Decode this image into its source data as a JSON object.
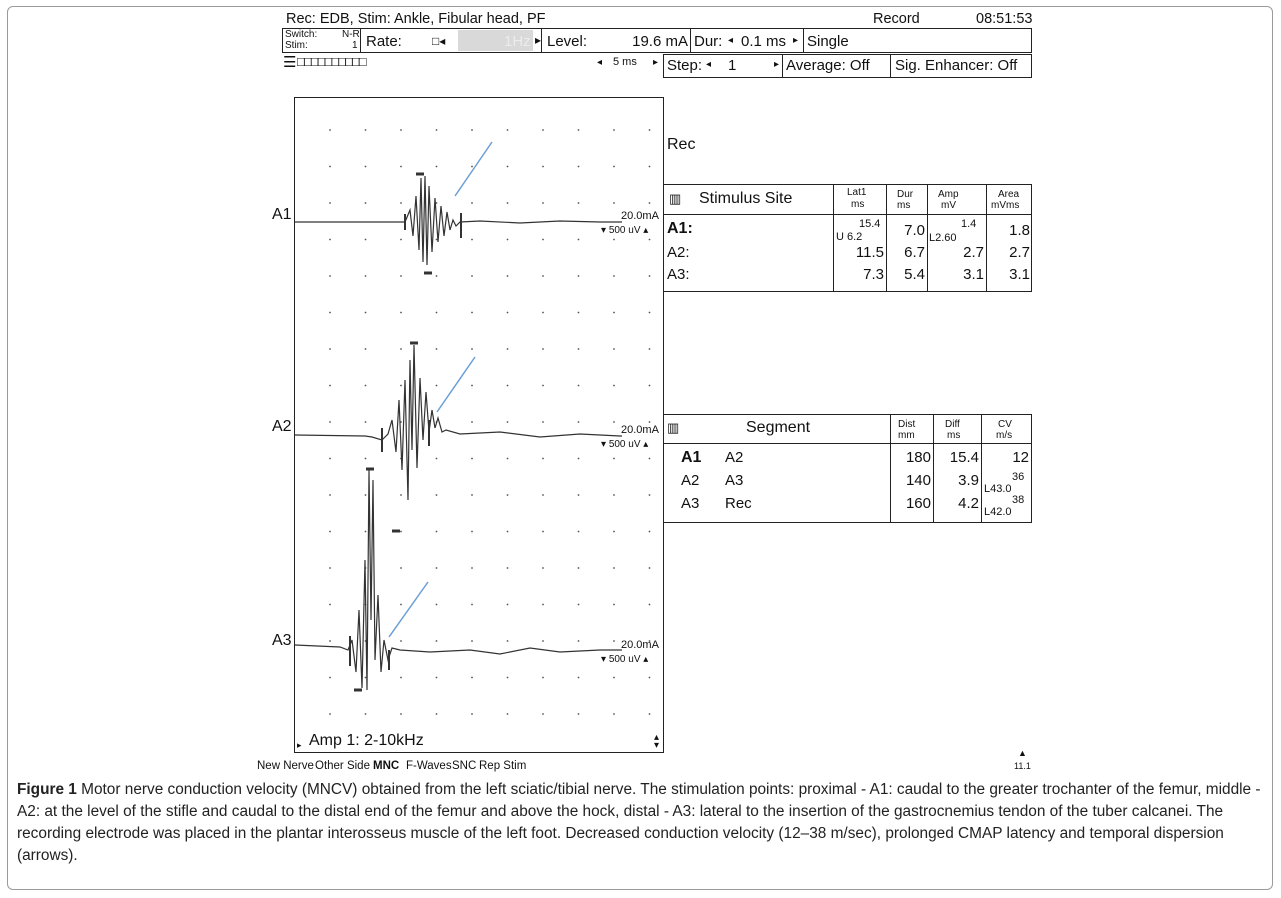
{
  "header": {
    "rec_line": "Rec: EDB,  Stim: Ankle, Fibular head, PF",
    "mode": "Record",
    "time": "08:51:53"
  },
  "controls": {
    "switch_label": "Switch:",
    "switch_value": "N-R",
    "stim_label": "Stim:",
    "stim_value": "1",
    "rate_label": "Rate:",
    "rate_value": "1Hz",
    "level_label": "Level:",
    "level_value": "19.6 mA",
    "dur_label": "Dur:",
    "dur_value": "0.1 ms",
    "single": "Single",
    "timebase": "5 ms",
    "step_label": "Step:",
    "step_value": "1",
    "average": "Average: Off",
    "sig_enhancer": "Sig. Enhancer: Off"
  },
  "traces": [
    {
      "label": "A1",
      "stim": "20.0mA",
      "gain": "500 uV"
    },
    {
      "label": "A2",
      "stim": "20.0mA",
      "gain": "500 uV"
    },
    {
      "label": "A3",
      "stim": "20.0mA",
      "gain": "500 uV"
    }
  ],
  "amp_label": "Amp 1: 2-10kHz",
  "rec_heading": "Rec",
  "stimulus_table": {
    "header": "Stimulus Site",
    "cols": [
      {
        "top": "Lat1",
        "bottom": "ms"
      },
      {
        "top": "Dur",
        "bottom": "ms"
      },
      {
        "top": "Amp",
        "bottom": "mV"
      },
      {
        "top": "Area",
        "bottom": "mVms"
      }
    ],
    "rows": [
      {
        "site": "A1:",
        "lat_sup": "15.4",
        "lat_mark": "U 6.2",
        "dur": "7.0",
        "amp_sup": "1.4",
        "amp_mark": "L2.60",
        "area": "1.8"
      },
      {
        "site": "A2:",
        "lat": "11.5",
        "dur": "6.7",
        "amp": "2.7",
        "area": "2.7"
      },
      {
        "site": "A3:",
        "lat": "7.3",
        "dur": "5.4",
        "amp": "3.1",
        "area": "3.1"
      }
    ]
  },
  "segment_table": {
    "header": "Segment",
    "cols": [
      {
        "top": "Dist",
        "bottom": "mm"
      },
      {
        "top": "Diff",
        "bottom": "ms"
      },
      {
        "top": "CV",
        "bottom": "m/s"
      }
    ],
    "rows": [
      {
        "from": "A1",
        "to": "A2",
        "dist": "180",
        "diff": "15.4",
        "cv": "12"
      },
      {
        "from": "A2",
        "to": "A3",
        "dist": "140",
        "diff": "3.9",
        "cv_sup": "36",
        "cv_mark": "L43.0"
      },
      {
        "from": "A3",
        "to": "Rec",
        "dist": "160",
        "diff": "4.2",
        "cv_sup": "38",
        "cv_mark": "L42.0"
      }
    ]
  },
  "bottom_menu": [
    "New Nerve",
    "Other Side",
    "MNC",
    "F-Waves",
    "SNC",
    "Rep Stim"
  ],
  "corner_value": "11.1",
  "caption": {
    "label": "Figure 1",
    "text": "Motor nerve conduction velocity (MNCV) obtained from the left sciatic/tibial nerve. The stimulation points: proximal - A1: caudal to the greater trochanter of the femur, middle - A2: at the level of the stifle and caudal to the distal end of the femur and above the hock, distal - A3: lateral to the insertion of the gastrocnemius tendon of the tuber calcanei. The recording electrode was placed in the plantar interosseus muscle of the left foot. Decreased conduction velocity (12–38 m/sec), prolonged CMAP latency and temporal dispersion (arrows)."
  }
}
